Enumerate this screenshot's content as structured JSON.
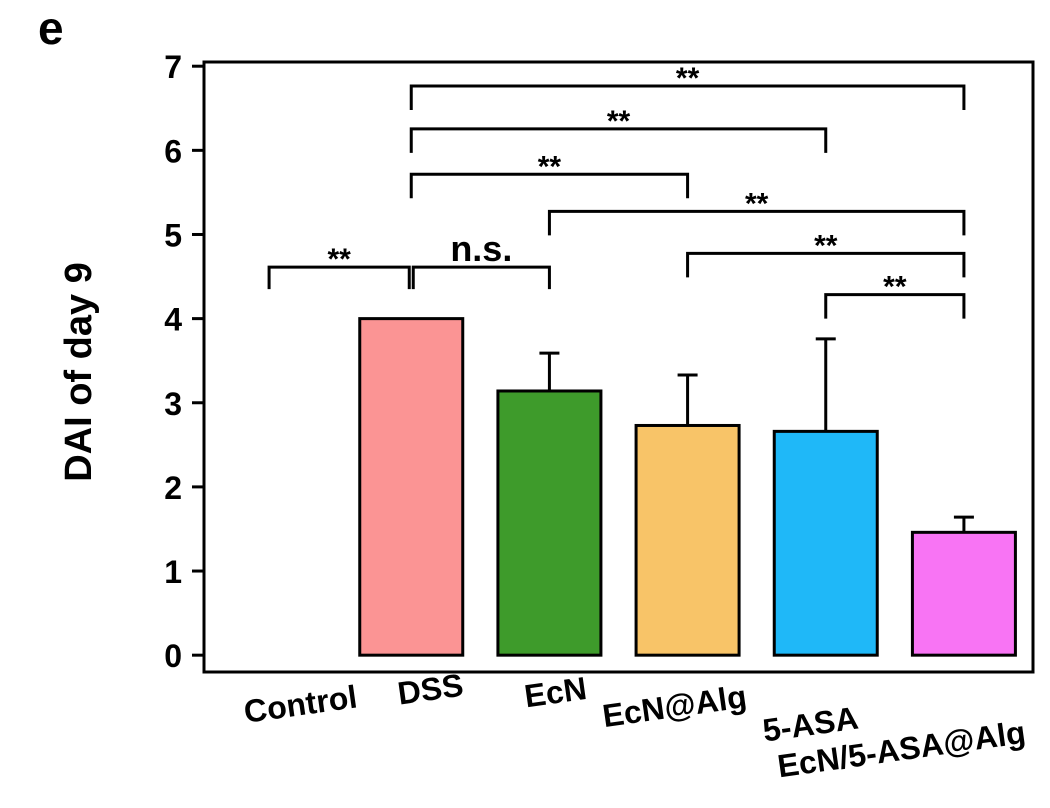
{
  "panel_label": "e",
  "chart_data": {
    "type": "bar",
    "categories": [
      "Control",
      "DSS",
      "EcN",
      "EcN@Alg",
      "5-ASA",
      "EcN/5-ASA@Alg"
    ],
    "values": [
      0.0,
      4.0,
      3.14,
      2.73,
      2.66,
      1.46
    ],
    "errors": [
      0.0,
      0.0,
      0.45,
      0.6,
      1.1,
      0.18
    ],
    "colors": [
      "#b3b7fb",
      "#fb9494",
      "#3e9b2b",
      "#f8c468",
      "#1fb8f8",
      "#f874f4"
    ],
    "title": "",
    "xlabel": "",
    "ylabel": "DAI of day 9",
    "ylim": [
      -0.2,
      7.05
    ],
    "yticks": [
      "0",
      "1",
      "2",
      "3",
      "4",
      "5",
      "6",
      "7"
    ],
    "annotations": [
      {
        "from": "Control",
        "to": "DSS",
        "label": "**"
      },
      {
        "from": "DSS",
        "to": "EcN",
        "label": "n.s."
      },
      {
        "from": "DSS",
        "to": "EcN@Alg",
        "label": "**"
      },
      {
        "from": "DSS",
        "to": "5-ASA",
        "label": "**"
      },
      {
        "from": "DSS",
        "to": "EcN/5-ASA@Alg",
        "label": "**"
      },
      {
        "from": "EcN",
        "to": "EcN/5-ASA@Alg",
        "label": "**"
      },
      {
        "from": "EcN@Alg",
        "to": "EcN/5-ASA@Alg",
        "label": "**"
      },
      {
        "from": "5-ASA",
        "to": "EcN/5-ASA@Alg",
        "label": "**"
      }
    ]
  }
}
